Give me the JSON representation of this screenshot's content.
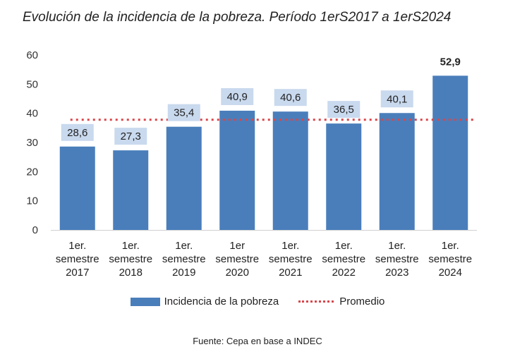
{
  "chart_data": {
    "type": "bar",
    "title": "Evolución de la incidencia de la pobreza. Período 1erS2017 a 1erS2024",
    "categories": [
      [
        "1er.",
        "semestre",
        "2017"
      ],
      [
        "1er.",
        "semestre",
        "2018"
      ],
      [
        "1er.",
        "semestre",
        "2019"
      ],
      [
        "1er",
        "semestre",
        "2020"
      ],
      [
        "1er.",
        "semestre",
        "2021"
      ],
      [
        "1er.",
        "semestre",
        "2022"
      ],
      [
        "1er.",
        "semestre",
        "2023"
      ],
      [
        "1er.",
        "semestre",
        "2024"
      ]
    ],
    "series": [
      {
        "name": "Incidencia de la pobreza",
        "values": [
          28.6,
          27.3,
          35.4,
          40.9,
          40.6,
          36.5,
          40.1,
          52.9
        ],
        "labels": [
          "28,6",
          "27,3",
          "35,4",
          "40,9",
          "40,6",
          "36,5",
          "40,1",
          "52,9"
        ],
        "color": "#4a7ebb"
      },
      {
        "name": "Promedio",
        "type": "line",
        "value": 37.8,
        "style": "dotted",
        "color": "#d9464a"
      }
    ],
    "yticks": [
      0,
      10,
      20,
      30,
      40,
      50,
      60
    ],
    "ylim": [
      0,
      60
    ],
    "label_bg_color": "#c9d9ee",
    "highlight_last_label": true,
    "grid": false,
    "legend_position": "bottom"
  },
  "source": "Fuente: Cepa en base a INDEC"
}
